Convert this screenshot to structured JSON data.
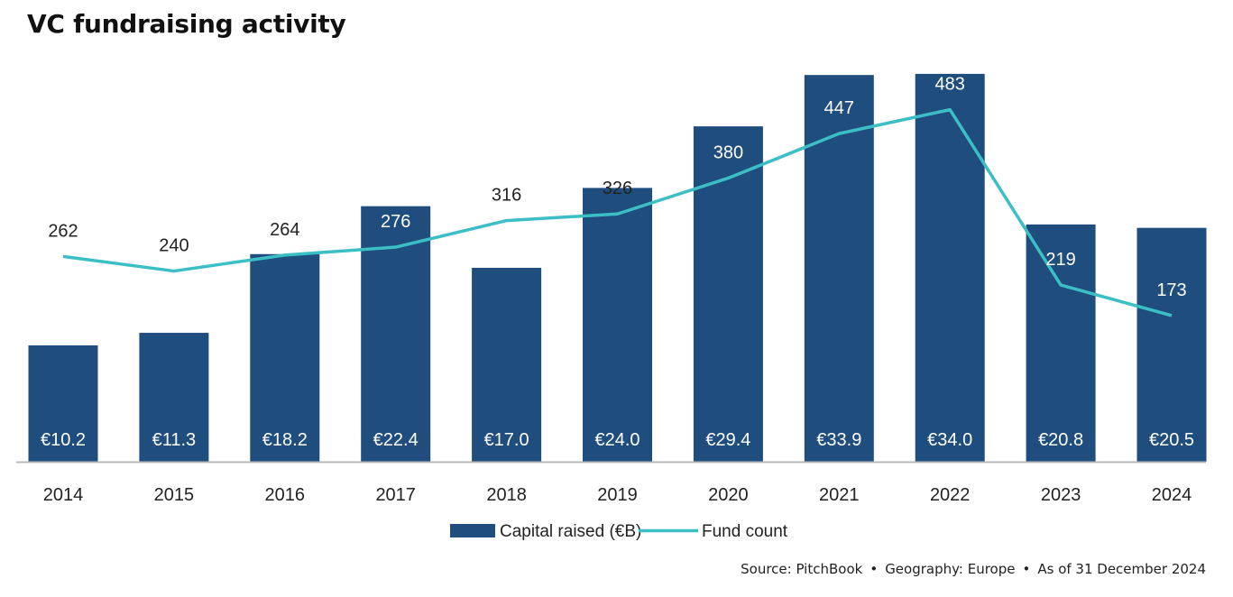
{
  "title": "VC fundraising activity",
  "source": {
    "parts": [
      "Source: PitchBook",
      "Geography: Europe",
      "As of 31 December 2024"
    ]
  },
  "colors": {
    "bar": "#1f4e7e",
    "line": "#3bbfc4",
    "axis": "#b8b8b8"
  },
  "chart_data": {
    "type": "bar",
    "categories": [
      "2014",
      "2015",
      "2016",
      "2017",
      "2018",
      "2019",
      "2020",
      "2021",
      "2022",
      "2023",
      "2024"
    ],
    "series": [
      {
        "name": "Capital raised (€B)",
        "type": "bar",
        "values": [
          10.2,
          11.3,
          18.2,
          22.4,
          17.0,
          24.0,
          29.4,
          33.9,
          34.0,
          20.8,
          20.5
        ],
        "labels": [
          "€10.2",
          "€11.3",
          "€18.2",
          "€22.4",
          "€17.0",
          "€24.0",
          "€29.4",
          "€33.9",
          "€34.0",
          "€20.8",
          "€20.5"
        ]
      },
      {
        "name": "Fund count",
        "type": "line",
        "values": [
          262,
          240,
          264,
          276,
          316,
          326,
          380,
          447,
          483,
          219,
          173
        ]
      }
    ],
    "legend": "bottom-center",
    "grid": false
  }
}
